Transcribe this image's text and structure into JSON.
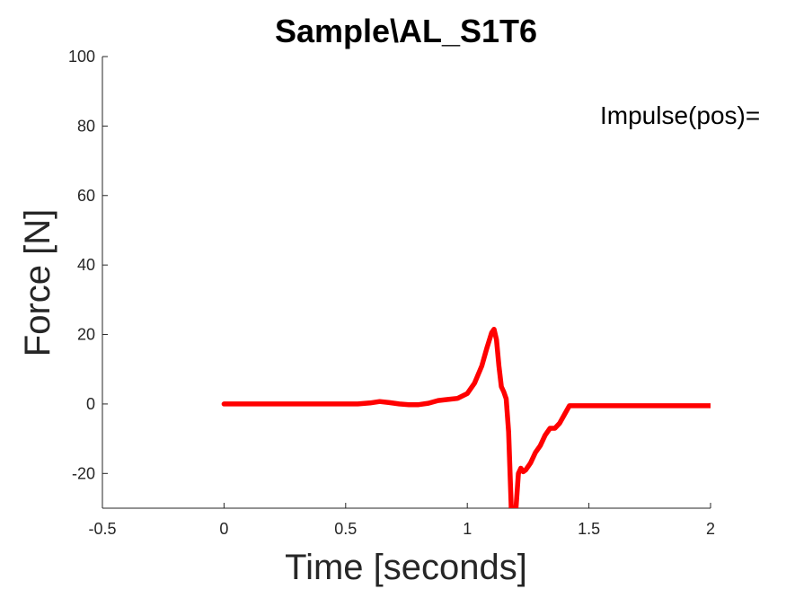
{
  "chart_data": {
    "type": "line",
    "title": "Sample\\AL_S1T6",
    "xlabel": "Time [seconds]",
    "ylabel": "Force [N]",
    "xlim": [
      -0.5,
      2
    ],
    "ylim": [
      -30,
      100
    ],
    "xticks": [
      -0.5,
      0,
      0.5,
      1,
      1.5,
      2
    ],
    "xtick_labels": [
      "-0.5",
      "0",
      "0.5",
      "1",
      "1.5",
      "2"
    ],
    "yticks": [
      -20,
      0,
      20,
      40,
      60,
      80,
      100
    ],
    "ytick_labels": [
      "-20",
      "0",
      "20",
      "40",
      "60",
      "80",
      "100"
    ],
    "grid": false,
    "annotation": "Impulse(pos)=",
    "series": [
      {
        "color": "#ff0000",
        "x": [
          0,
          0.1,
          0.2,
          0.3,
          0.4,
          0.5,
          0.55,
          0.6,
          0.64,
          0.68,
          0.72,
          0.76,
          0.8,
          0.84,
          0.88,
          0.92,
          0.96,
          1.0,
          1.03,
          1.06,
          1.08,
          1.1,
          1.11,
          1.12,
          1.13,
          1.14,
          1.15,
          1.16,
          1.17,
          1.18,
          1.185,
          1.19,
          1.2,
          1.21,
          1.22,
          1.23,
          1.24,
          1.26,
          1.28,
          1.3,
          1.32,
          1.34,
          1.36,
          1.38,
          1.4,
          1.42,
          1.44,
          1.5,
          1.6,
          1.7,
          1.8,
          1.9,
          2.0
        ],
        "y": [
          0,
          0,
          0,
          0,
          0,
          0,
          0,
          0.3,
          0.7,
          0.4,
          0,
          -0.2,
          -0.2,
          0.2,
          1.0,
          1.3,
          1.6,
          3.0,
          6.0,
          11.0,
          16.0,
          20.5,
          21.5,
          18.5,
          11.0,
          5.0,
          3.5,
          1.5,
          -8.0,
          -28.0,
          -40.0,
          -40.0,
          -30.0,
          -20.0,
          -18.5,
          -19.5,
          -19.0,
          -17.0,
          -14.0,
          -12.0,
          -9.0,
          -7.0,
          -7.0,
          -5.5,
          -3.0,
          -0.5,
          -0.5,
          -0.5,
          -0.5,
          -0.5,
          -0.5,
          -0.5,
          -0.5
        ]
      }
    ]
  }
}
